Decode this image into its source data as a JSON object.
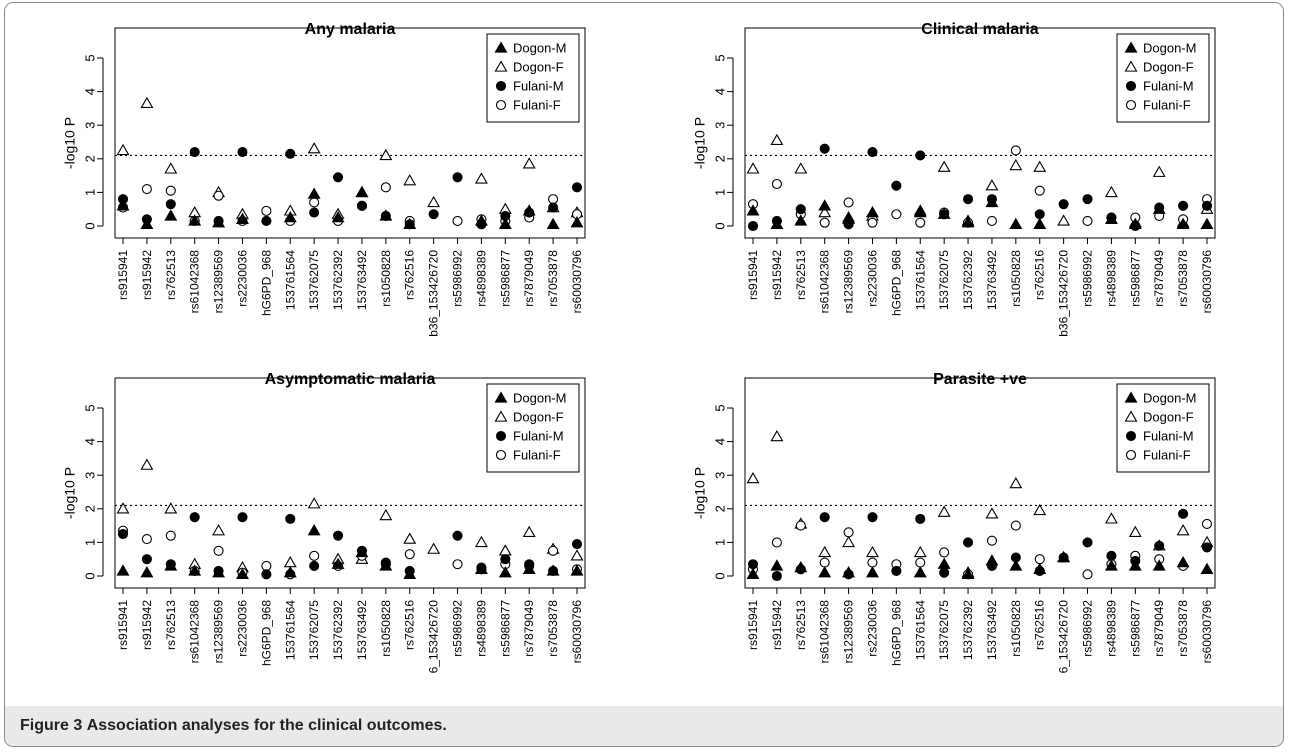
{
  "figure": {
    "caption_label": "Figure 3",
    "caption_text": "Association analyses for the clinical outcomes."
  },
  "chart_data": [
    {
      "type": "scatter",
      "title": "Any malaria",
      "ylabel": "-log10 P",
      "ylim": [
        0,
        5
      ],
      "yticks": [
        0,
        1,
        2,
        3,
        4,
        5
      ],
      "threshold": 2.1,
      "legend_position": "top-right",
      "categories": [
        "rs915941",
        "rs915942",
        "rs762513",
        "rs61042368",
        "rs12389569",
        "rs2230036",
        "hG6PD_968",
        "153761564",
        "153762075",
        "153762392",
        "153763492",
        "rs1050828",
        "rs762516",
        "b36_153426720",
        "rs5986992",
        "rs4898389",
        "rs5986877",
        "rs7879049",
        "rs7053878",
        "rs60030796"
      ],
      "series": [
        {
          "name": "Dogon-M",
          "marker": "triangle-filled",
          "values": [
            0.6,
            0.05,
            0.3,
            0.15,
            0.1,
            0.2,
            null,
            0.25,
            0.95,
            0.25,
            1.0,
            0.3,
            0.05,
            null,
            null,
            0.15,
            0.05,
            0.45,
            0.05,
            0.1
          ]
        },
        {
          "name": "Dogon-F",
          "marker": "triangle-open",
          "values": [
            2.25,
            3.65,
            1.7,
            0.4,
            1.0,
            0.35,
            null,
            0.45,
            2.3,
            0.35,
            1.0,
            2.1,
            1.35,
            0.7,
            null,
            1.4,
            0.5,
            1.85,
            0.55,
            0.4
          ]
        },
        {
          "name": "Fulani-M",
          "marker": "circle-filled",
          "values": [
            0.8,
            0.2,
            0.65,
            2.2,
            0.15,
            2.2,
            0.15,
            2.15,
            0.4,
            1.45,
            0.6,
            0.3,
            0.05,
            0.35,
            1.45,
            0.05,
            0.3,
            0.4,
            0.55,
            1.15
          ]
        },
        {
          "name": "Fulani-F",
          "marker": "circle-open",
          "values": [
            0.55,
            1.1,
            1.05,
            0.15,
            0.9,
            0.15,
            0.45,
            0.15,
            0.7,
            0.15,
            0.6,
            1.15,
            0.15,
            null,
            0.15,
            0.2,
            0.15,
            0.25,
            0.8,
            0.35
          ]
        }
      ]
    },
    {
      "type": "scatter",
      "title": "Clinical malaria",
      "ylabel": "-log10 P",
      "ylim": [
        0,
        5
      ],
      "yticks": [
        0,
        1,
        2,
        3,
        4,
        5
      ],
      "threshold": 2.1,
      "legend_position": "top-right",
      "categories": [
        "rs915941",
        "rs915942",
        "rs762513",
        "rs61042368",
        "rs12389569",
        "rs2230036",
        "hG6PD_968",
        "153761564",
        "153762075",
        "153762392",
        "153763492",
        "rs1050828",
        "rs762516",
        "b36_153426720",
        "rs5986992",
        "rs4898389",
        "rs5986877",
        "rs7879049",
        "rs7053878",
        "rs60030796"
      ],
      "series": [
        {
          "name": "Dogon-M",
          "marker": "triangle-filled",
          "values": [
            0.45,
            0.05,
            0.15,
            0.6,
            0.2,
            0.4,
            null,
            0.4,
            0.35,
            0.1,
            0.7,
            0.05,
            0.05,
            null,
            null,
            0.2,
            0.05,
            0.5,
            0.05,
            0.05
          ]
        },
        {
          "name": "Dogon-F",
          "marker": "triangle-open",
          "values": [
            1.7,
            2.55,
            1.7,
            0.4,
            0.25,
            0.3,
            null,
            0.45,
            1.75,
            0.15,
            1.2,
            1.8,
            1.75,
            0.15,
            null,
            1.0,
            0.1,
            1.6,
            0.1,
            0.5
          ]
        },
        {
          "name": "Fulani-M",
          "marker": "circle-filled",
          "values": [
            0.0,
            0.15,
            0.5,
            2.3,
            0.05,
            2.2,
            1.2,
            2.1,
            0.35,
            0.8,
            0.8,
            null,
            0.35,
            0.65,
            0.8,
            0.25,
            0.0,
            0.55,
            0.6,
            0.6
          ]
        },
        {
          "name": "Fulani-F",
          "marker": "circle-open",
          "values": [
            0.65,
            1.25,
            0.35,
            0.1,
            0.7,
            0.1,
            0.35,
            0.1,
            0.4,
            0.1,
            0.15,
            2.25,
            1.05,
            null,
            0.15,
            0.25,
            0.25,
            0.3,
            0.2,
            0.8
          ]
        }
      ]
    },
    {
      "type": "scatter",
      "title": "Asymptomatic malaria",
      "ylabel": "-log10 P",
      "ylim": [
        0,
        5
      ],
      "yticks": [
        0,
        1,
        2,
        3,
        4,
        5
      ],
      "threshold": 2.1,
      "legend_position": "top-right",
      "categories": [
        "rs915941",
        "rs915942",
        "rs762513",
        "rs61042368",
        "rs12389569",
        "rs2230036",
        "hG6PD_968",
        "153761564",
        "153762075",
        "153762392",
        "153763492",
        "rs1050828",
        "rs762516",
        "6_153426720",
        "rs5986992",
        "rs4898389",
        "rs5986877",
        "rs7879049",
        "rs7053878",
        "rs60030796"
      ],
      "series": [
        {
          "name": "Dogon-M",
          "marker": "triangle-filled",
          "values": [
            0.15,
            0.1,
            0.3,
            0.15,
            0.1,
            0.05,
            null,
            0.1,
            1.35,
            0.35,
            0.7,
            0.3,
            0.05,
            null,
            null,
            0.2,
            0.1,
            0.2,
            0.15,
            0.15
          ]
        },
        {
          "name": "Dogon-F",
          "marker": "triangle-open",
          "values": [
            2.0,
            3.3,
            2.0,
            0.35,
            1.35,
            0.25,
            null,
            0.4,
            2.15,
            0.5,
            0.5,
            1.8,
            1.1,
            0.8,
            null,
            1.0,
            0.75,
            1.3,
            0.8,
            0.6
          ]
        },
        {
          "name": "Fulani-M",
          "marker": "circle-filled",
          "values": [
            1.25,
            0.5,
            0.35,
            1.75,
            0.15,
            1.75,
            0.05,
            1.7,
            0.3,
            1.2,
            0.75,
            0.4,
            0.15,
            null,
            1.2,
            0.25,
            0.5,
            0.35,
            0.15,
            0.95
          ]
        },
        {
          "name": "Fulani-F",
          "marker": "circle-open",
          "values": [
            1.35,
            1.1,
            1.2,
            0.15,
            0.75,
            0.1,
            0.3,
            0.05,
            0.6,
            0.3,
            0.6,
            0.35,
            0.65,
            null,
            0.35,
            0.2,
            0.35,
            0.3,
            0.75,
            0.2
          ]
        }
      ]
    },
    {
      "type": "scatter",
      "title": "Parasite +ve",
      "ylabel": "-log10 P",
      "ylim": [
        0,
        5
      ],
      "yticks": [
        0,
        1,
        2,
        3,
        4,
        5
      ],
      "threshold": 2.1,
      "legend_position": "top-right",
      "categories": [
        "rs915941",
        "rs915942",
        "rs762513",
        "rs61042368",
        "rs12389569",
        "rs2230036",
        "hG6PD_968",
        "153761564",
        "153762075",
        "153762392",
        "153763492",
        "rs1050828",
        "rs762516",
        "6_153426720",
        "rs5986992",
        "rs4898389",
        "rs5986877",
        "rs7879049",
        "rs7053878",
        "rs60030796"
      ],
      "series": [
        {
          "name": "Dogon-M",
          "marker": "triangle-filled",
          "values": [
            0.05,
            0.3,
            0.25,
            0.1,
            0.1,
            0.1,
            null,
            0.1,
            0.35,
            0.05,
            0.45,
            0.3,
            0.2,
            0.55,
            null,
            0.3,
            0.3,
            0.3,
            0.4,
            0.2
          ]
        },
        {
          "name": "Dogon-F",
          "marker": "triangle-open",
          "values": [
            2.9,
            4.15,
            1.55,
            0.7,
            1.0,
            0.7,
            null,
            0.7,
            1.9,
            0.1,
            1.85,
            2.75,
            1.95,
            0.55,
            null,
            1.7,
            1.3,
            0.9,
            1.35,
            1.0
          ]
        },
        {
          "name": "Fulani-M",
          "marker": "circle-filled",
          "values": [
            0.35,
            0.0,
            0.2,
            1.75,
            0.05,
            1.75,
            0.15,
            1.7,
            0.1,
            1.0,
            0.3,
            0.55,
            0.15,
            0.55,
            1.0,
            0.6,
            0.45,
            0.9,
            1.85,
            0.85
          ]
        },
        {
          "name": "Fulani-F",
          "marker": "circle-open",
          "values": [
            0.2,
            1.0,
            1.5,
            0.4,
            1.3,
            0.4,
            0.35,
            0.4,
            0.7,
            0.05,
            1.05,
            1.5,
            0.5,
            null,
            0.05,
            0.35,
            0.6,
            0.5,
            0.3,
            1.55
          ]
        }
      ]
    }
  ]
}
